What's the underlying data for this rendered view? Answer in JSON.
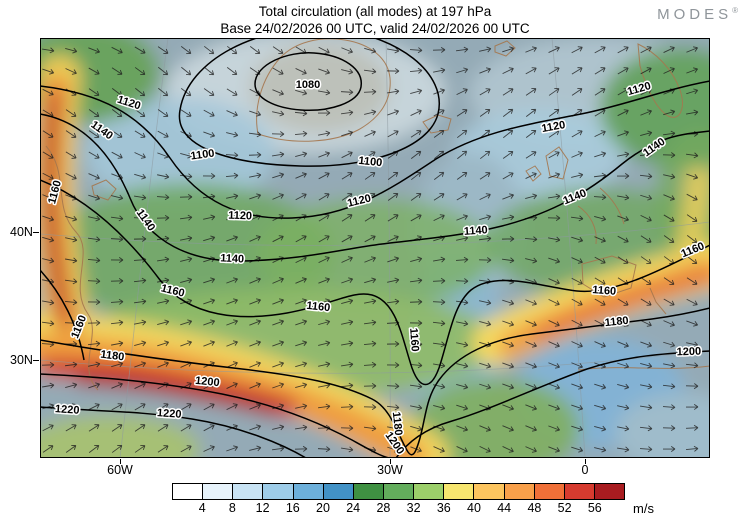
{
  "header": {
    "title": "Total circulation (all modes) at 197 hPa",
    "subtitle": "Base 24/02/2026 00 UTC, valid 24/02/2026 00 UTC",
    "logo": {
      "text": "MODES",
      "registered": "®"
    }
  },
  "chart_data": {
    "type": "heatmap",
    "title": "Total circulation (all modes) at 197 hPa",
    "subtitle": "Base 24/02/2026 00 UTC, valid 24/02/2026 00 UTC",
    "contour_levels": [
      "1080",
      "1100",
      "1120",
      "1140",
      "1160",
      "1180",
      "1200",
      "1220"
    ],
    "yaxis_ticks": [
      "40N",
      "30N"
    ],
    "xaxis_ticks": [
      "60W",
      "30W",
      "0"
    ],
    "legend_position": "bottom",
    "colorbar": {
      "units": "m/s",
      "ticks": [
        "4",
        "8",
        "12",
        "16",
        "20",
        "24",
        "28",
        "32",
        "36",
        "40",
        "44",
        "48",
        "52",
        "56"
      ],
      "colors": [
        "#ffffff",
        "#e7f3fb",
        "#c8e3f4",
        "#9ecde9",
        "#6db0db",
        "#4292c6",
        "#3f9142",
        "#63ad5c",
        "#9ccf6a",
        "#f7e66f",
        "#fdc55f",
        "#f9a04a",
        "#f07038",
        "#d63b2f",
        "#a81c20"
      ]
    }
  }
}
